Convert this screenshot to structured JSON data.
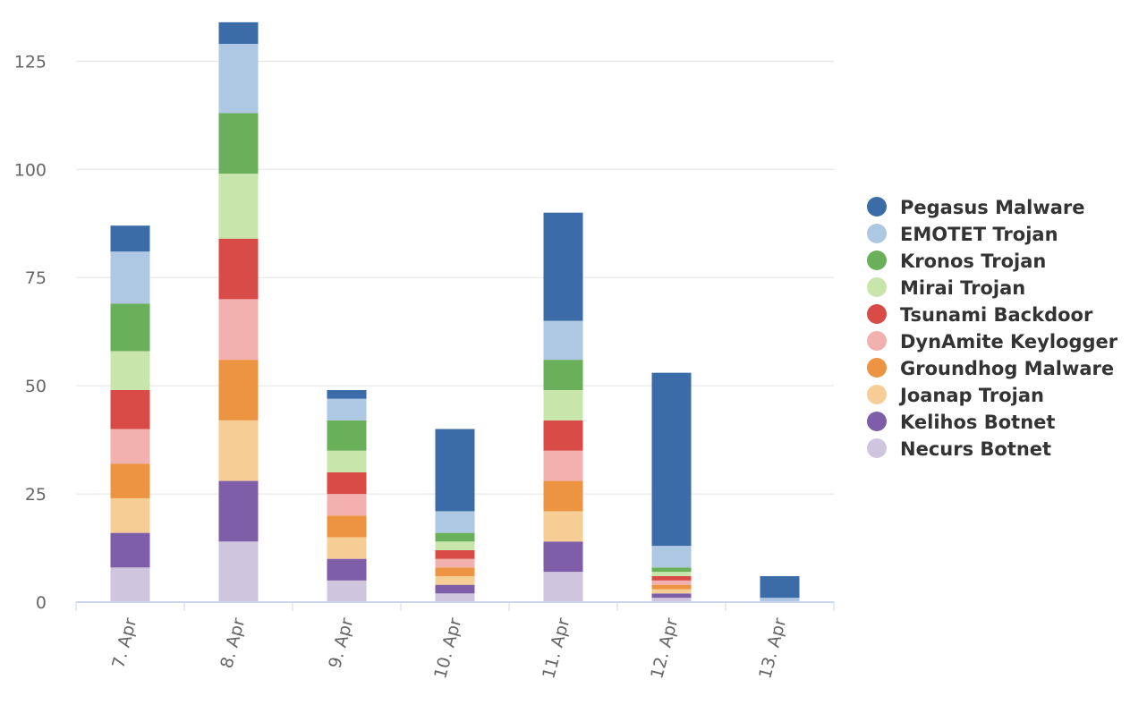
{
  "chart_data": {
    "type": "bar",
    "stacked": true,
    "categories": [
      "7. Apr",
      "8. Apr",
      "9. Apr",
      "10. Apr",
      "11. Apr",
      "12. Apr",
      "13. Apr"
    ],
    "series": [
      {
        "name": "Pegasus Malware",
        "color": "#3b6ca8",
        "values": [
          6,
          5,
          2,
          19,
          25,
          40,
          5
        ]
      },
      {
        "name": "EMOTET Trojan",
        "color": "#aec8e4",
        "values": [
          12,
          16,
          5,
          5,
          9,
          5,
          1
        ]
      },
      {
        "name": "Kronos Trojan",
        "color": "#6aaf5a",
        "values": [
          11,
          14,
          7,
          2,
          7,
          1,
          0
        ]
      },
      {
        "name": "Mirai Trojan",
        "color": "#c8e5ab",
        "values": [
          9,
          15,
          5,
          2,
          7,
          1,
          0
        ]
      },
      {
        "name": "Tsunami Backdoor",
        "color": "#d84b47",
        "values": [
          9,
          14,
          5,
          2,
          7,
          1,
          0
        ]
      },
      {
        "name": "DynAmite Keylogger",
        "color": "#f2b1ae",
        "values": [
          8,
          14,
          5,
          2,
          7,
          1,
          0
        ]
      },
      {
        "name": "Groundhog Malware",
        "color": "#ed9442",
        "values": [
          8,
          14,
          5,
          2,
          7,
          1,
          0
        ]
      },
      {
        "name": "Joanap Trojan",
        "color": "#f6cd94",
        "values": [
          8,
          14,
          5,
          2,
          7,
          1,
          0
        ]
      },
      {
        "name": "Kelihos Botnet",
        "color": "#7e5ea9",
        "values": [
          8,
          14,
          5,
          2,
          7,
          1,
          0
        ]
      },
      {
        "name": "Necurs Botnet",
        "color": "#d0c5df",
        "values": [
          8,
          14,
          5,
          2,
          7,
          1,
          0
        ]
      }
    ],
    "yticks": [
      0,
      25,
      50,
      75,
      100,
      125
    ],
    "ylim": [
      0,
      135
    ],
    "grid": true,
    "legend_position": "right"
  }
}
